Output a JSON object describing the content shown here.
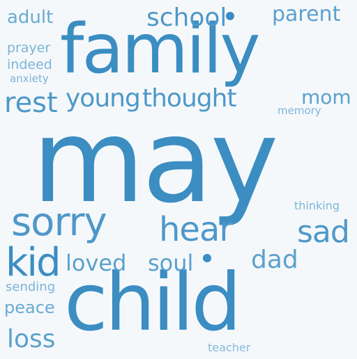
{
  "words": [
    {
      "text": "may",
      "color": "#3b8dc2"
    },
    {
      "text": "family",
      "color": "#3b8dc2"
    },
    {
      "text": "child",
      "color": "#3b8dc2"
    },
    {
      "text": "sorry",
      "color": "#4e98c8"
    },
    {
      "text": "hear",
      "color": "#4e98c8"
    },
    {
      "text": "kid",
      "color": "#3b8dc2"
    },
    {
      "text": "school",
      "color": "#4e98c8"
    },
    {
      "text": "rest",
      "color": "#4e98c8"
    },
    {
      "text": "young",
      "color": "#4e98c8"
    },
    {
      "text": "thought",
      "color": "#4e98c8"
    },
    {
      "text": "sad",
      "color": "#4e98c8"
    },
    {
      "text": "loved",
      "color": "#5ba1cc"
    },
    {
      "text": "soul",
      "color": "#5ba1cc"
    },
    {
      "text": "dad",
      "color": "#5ba1cc"
    },
    {
      "text": "loss",
      "color": "#5ba1cc"
    },
    {
      "text": "parent",
      "color": "#5ba1cc"
    },
    {
      "text": "mom",
      "color": "#5ba1cc"
    },
    {
      "text": "adult",
      "color": "#6aaad2"
    },
    {
      "text": "peace",
      "color": "#6aaad2"
    },
    {
      "text": "prayer",
      "color": "#7bb4d8"
    },
    {
      "text": "indeed",
      "color": "#7bb4d8"
    },
    {
      "text": "anxiety",
      "color": "#7bb4d8"
    },
    {
      "text": "sending",
      "color": "#7bb4d8"
    },
    {
      "text": "memory",
      "color": "#7bb4d8"
    },
    {
      "text": "thinking",
      "color": "#7bb4d8"
    },
    {
      "text": "teacher",
      "color": "#84bbdb"
    }
  ],
  "dot_color": "#3b8dc2"
}
